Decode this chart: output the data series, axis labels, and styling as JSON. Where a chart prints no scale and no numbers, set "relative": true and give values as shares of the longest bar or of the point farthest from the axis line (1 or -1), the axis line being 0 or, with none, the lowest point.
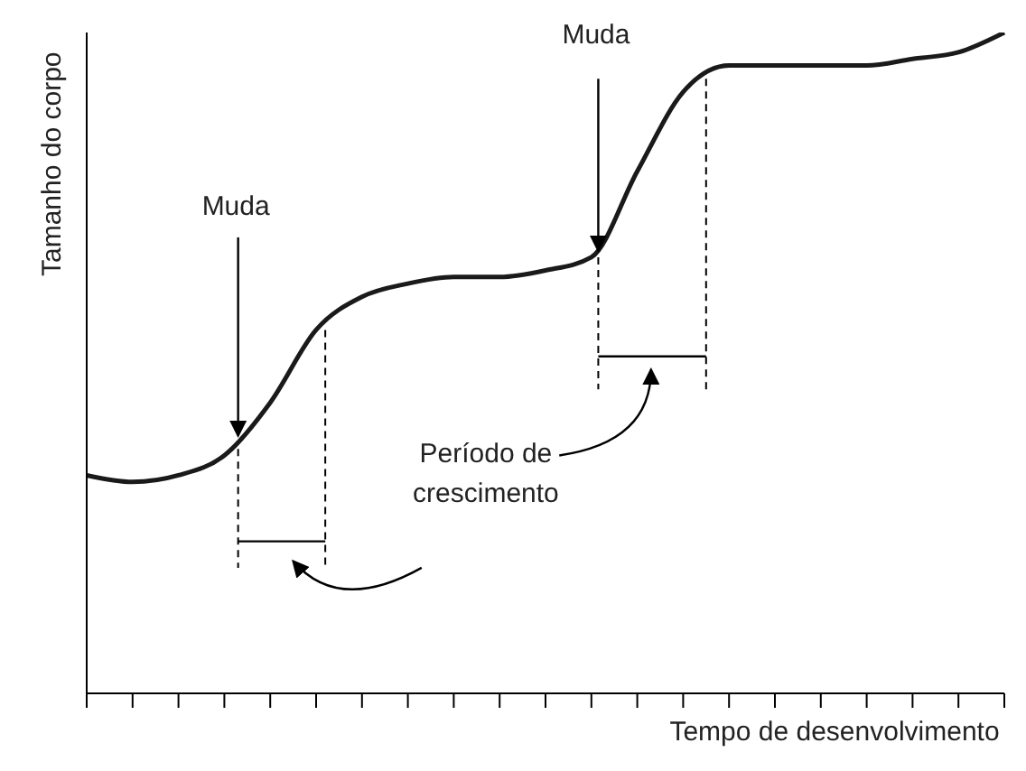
{
  "chart_data": {
    "type": "line",
    "relative": true,
    "xlabel": "Tempo de desenvolvimento",
    "ylabel": "Tamanho do corpo",
    "categories": [
      null,
      null,
      null,
      null,
      null,
      null,
      null,
      null,
      null,
      null,
      null,
      null,
      null,
      null,
      null,
      null,
      null,
      null,
      null,
      null,
      null
    ],
    "series": [
      {
        "color": "#1a1a1a",
        "values": [
          0.33,
          0.32,
          0.33,
          0.36,
          0.44,
          0.55,
          0.6,
          0.62,
          0.63,
          0.63,
          0.64,
          0.66,
          0.79,
          0.91,
          0.95,
          0.95,
          0.95,
          0.95,
          0.96,
          0.97,
          1
        ]
      }
    ],
    "annotations": [
      "Muda",
      "Muda",
      "Período de crescimento"
    ],
    "grid": false,
    "legend": false,
    "marker": "none",
    "line_style": "solid"
  }
}
